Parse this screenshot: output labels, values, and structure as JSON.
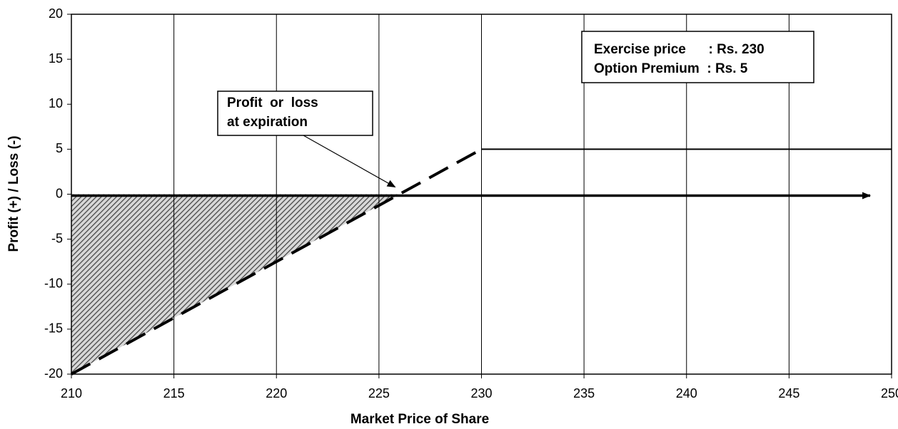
{
  "chart_data": {
    "type": "line",
    "xlabel": "Market Price of Share",
    "ylabel": "Profit (+) / Loss (-)",
    "xlim": [
      210,
      250
    ],
    "xticks": [
      210,
      215,
      220,
      225,
      230,
      235,
      240,
      245,
      250
    ],
    "ylim": [
      -20,
      20
    ],
    "yticks": [
      -20,
      -15,
      -10,
      -5,
      0,
      5,
      10,
      15,
      20
    ],
    "grid": "vertical",
    "series": [
      {
        "color": "#000000",
        "line_style": "dashed",
        "x": [
          210,
          230
        ],
        "values": [
          -20,
          5
        ]
      },
      {
        "color": "#000000",
        "line_style": "solid",
        "x": [
          230,
          250
        ],
        "values": [
          5,
          5
        ]
      }
    ],
    "annotations": [
      {
        "lines": [
          "Profit  or  loss",
          "at expiration"
        ]
      },
      {
        "lines": [
          "Exercise price      : Rs. 230",
          "Option Premium  : Rs. 5"
        ]
      }
    ]
  }
}
